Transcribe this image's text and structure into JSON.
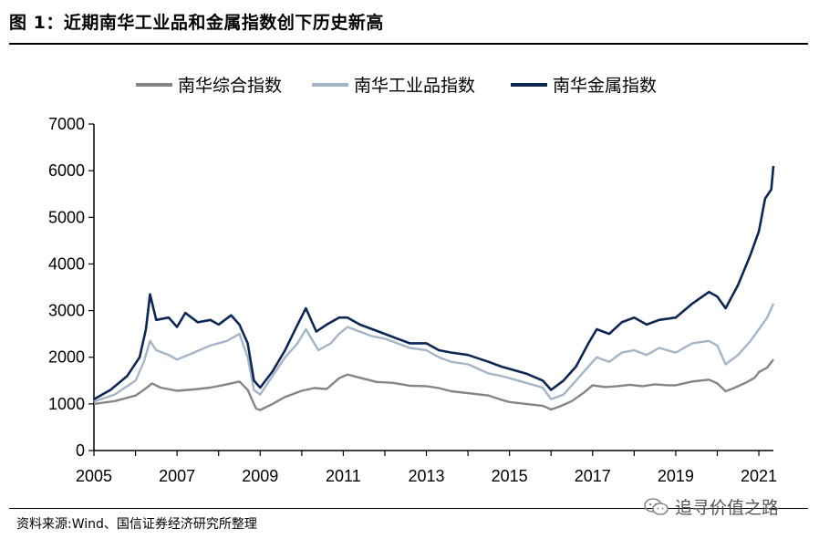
{
  "header": {
    "title": "图 1：近期南华工业品和金属指数创下历史新高"
  },
  "footer": {
    "source": "资料来源:Wind、国信证券经济研究所整理",
    "watermark": "追寻价值之路"
  },
  "colors": {
    "composite": "#858585",
    "industrial": "#a4b5c8",
    "metals": "#0c2655"
  },
  "icons": [
    "wechat-icon"
  ],
  "chart_data": {
    "type": "line",
    "title": "",
    "xlabel": "",
    "ylabel": "",
    "ylim": [
      0,
      7000
    ],
    "xlim": [
      2005,
      2021.35
    ],
    "yticks": [
      "0",
      "1000",
      "2000",
      "3000",
      "4000",
      "5000",
      "6000",
      "7000"
    ],
    "xticks": [
      "2005",
      "2007",
      "2009",
      "2011",
      "2013",
      "2015",
      "2017",
      "2019",
      "2021"
    ],
    "grid": false,
    "legend_position": "top",
    "series": [
      {
        "name": "南华综合指数",
        "points": [
          [
            2005.0,
            1000
          ],
          [
            2005.5,
            1060
          ],
          [
            2006.0,
            1180
          ],
          [
            2006.2,
            1300
          ],
          [
            2006.4,
            1440
          ],
          [
            2006.6,
            1350
          ],
          [
            2007.0,
            1280
          ],
          [
            2007.4,
            1310
          ],
          [
            2007.8,
            1350
          ],
          [
            2008.2,
            1420
          ],
          [
            2008.5,
            1480
          ],
          [
            2008.7,
            1300
          ],
          [
            2008.9,
            900
          ],
          [
            2009.0,
            870
          ],
          [
            2009.3,
            1000
          ],
          [
            2009.6,
            1150
          ],
          [
            2010.0,
            1280
          ],
          [
            2010.3,
            1340
          ],
          [
            2010.6,
            1320
          ],
          [
            2010.9,
            1550
          ],
          [
            2011.1,
            1630
          ],
          [
            2011.4,
            1560
          ],
          [
            2011.8,
            1470
          ],
          [
            2012.2,
            1450
          ],
          [
            2012.6,
            1390
          ],
          [
            2013.0,
            1380
          ],
          [
            2013.3,
            1340
          ],
          [
            2013.6,
            1270
          ],
          [
            2014.0,
            1230
          ],
          [
            2014.5,
            1180
          ],
          [
            2014.8,
            1090
          ],
          [
            2015.0,
            1040
          ],
          [
            2015.4,
            1000
          ],
          [
            2015.8,
            960
          ],
          [
            2016.0,
            880
          ],
          [
            2016.2,
            940
          ],
          [
            2016.5,
            1060
          ],
          [
            2016.8,
            1250
          ],
          [
            2017.0,
            1400
          ],
          [
            2017.3,
            1360
          ],
          [
            2017.6,
            1380
          ],
          [
            2017.9,
            1410
          ],
          [
            2018.2,
            1380
          ],
          [
            2018.5,
            1420
          ],
          [
            2018.8,
            1400
          ],
          [
            2019.0,
            1400
          ],
          [
            2019.4,
            1480
          ],
          [
            2019.8,
            1520
          ],
          [
            2020.0,
            1440
          ],
          [
            2020.2,
            1270
          ],
          [
            2020.4,
            1340
          ],
          [
            2020.7,
            1460
          ],
          [
            2020.9,
            1560
          ],
          [
            2021.0,
            1680
          ],
          [
            2021.2,
            1780
          ],
          [
            2021.35,
            1950
          ]
        ]
      },
      {
        "name": "南华工业品指数",
        "points": [
          [
            2005.0,
            1050
          ],
          [
            2005.5,
            1200
          ],
          [
            2006.0,
            1500
          ],
          [
            2006.2,
            1900
          ],
          [
            2006.35,
            2350
          ],
          [
            2006.5,
            2150
          ],
          [
            2006.8,
            2050
          ],
          [
            2007.0,
            1950
          ],
          [
            2007.4,
            2100
          ],
          [
            2007.8,
            2250
          ],
          [
            2008.2,
            2350
          ],
          [
            2008.5,
            2500
          ],
          [
            2008.7,
            2000
          ],
          [
            2008.85,
            1300
          ],
          [
            2009.0,
            1200
          ],
          [
            2009.3,
            1600
          ],
          [
            2009.6,
            2000
          ],
          [
            2009.9,
            2300
          ],
          [
            2010.1,
            2600
          ],
          [
            2010.4,
            2150
          ],
          [
            2010.7,
            2300
          ],
          [
            2010.9,
            2500
          ],
          [
            2011.1,
            2650
          ],
          [
            2011.4,
            2550
          ],
          [
            2011.7,
            2450
          ],
          [
            2012.0,
            2400
          ],
          [
            2012.3,
            2300
          ],
          [
            2012.6,
            2200
          ],
          [
            2013.0,
            2150
          ],
          [
            2013.3,
            2000
          ],
          [
            2013.6,
            1900
          ],
          [
            2014.0,
            1850
          ],
          [
            2014.5,
            1650
          ],
          [
            2014.8,
            1600
          ],
          [
            2015.0,
            1550
          ],
          [
            2015.4,
            1450
          ],
          [
            2015.8,
            1350
          ],
          [
            2016.0,
            1100
          ],
          [
            2016.3,
            1200
          ],
          [
            2016.6,
            1500
          ],
          [
            2016.9,
            1800
          ],
          [
            2017.1,
            2000
          ],
          [
            2017.4,
            1900
          ],
          [
            2017.7,
            2100
          ],
          [
            2018.0,
            2150
          ],
          [
            2018.3,
            2050
          ],
          [
            2018.6,
            2200
          ],
          [
            2019.0,
            2100
          ],
          [
            2019.4,
            2300
          ],
          [
            2019.8,
            2350
          ],
          [
            2020.0,
            2250
          ],
          [
            2020.2,
            1850
          ],
          [
            2020.5,
            2050
          ],
          [
            2020.8,
            2350
          ],
          [
            2021.0,
            2600
          ],
          [
            2021.2,
            2850
          ],
          [
            2021.35,
            3150
          ]
        ]
      },
      {
        "name": "南华金属指数",
        "points": [
          [
            2005.0,
            1100
          ],
          [
            2005.4,
            1300
          ],
          [
            2005.8,
            1600
          ],
          [
            2006.1,
            2000
          ],
          [
            2006.25,
            2600
          ],
          [
            2006.35,
            3350
          ],
          [
            2006.5,
            2800
          ],
          [
            2006.8,
            2850
          ],
          [
            2007.0,
            2650
          ],
          [
            2007.2,
            2950
          ],
          [
            2007.5,
            2750
          ],
          [
            2007.8,
            2800
          ],
          [
            2008.0,
            2700
          ],
          [
            2008.3,
            2900
          ],
          [
            2008.5,
            2700
          ],
          [
            2008.7,
            2300
          ],
          [
            2008.85,
            1500
          ],
          [
            2009.0,
            1350
          ],
          [
            2009.3,
            1700
          ],
          [
            2009.6,
            2150
          ],
          [
            2009.9,
            2700
          ],
          [
            2010.1,
            3050
          ],
          [
            2010.35,
            2550
          ],
          [
            2010.6,
            2700
          ],
          [
            2010.9,
            2850
          ],
          [
            2011.1,
            2850
          ],
          [
            2011.4,
            2700
          ],
          [
            2011.7,
            2600
          ],
          [
            2012.0,
            2500
          ],
          [
            2012.3,
            2400
          ],
          [
            2012.6,
            2300
          ],
          [
            2013.0,
            2300
          ],
          [
            2013.3,
            2150
          ],
          [
            2013.6,
            2100
          ],
          [
            2014.0,
            2050
          ],
          [
            2014.5,
            1900
          ],
          [
            2014.8,
            1800
          ],
          [
            2015.0,
            1750
          ],
          [
            2015.4,
            1650
          ],
          [
            2015.8,
            1500
          ],
          [
            2016.0,
            1300
          ],
          [
            2016.3,
            1500
          ],
          [
            2016.6,
            1800
          ],
          [
            2016.9,
            2300
          ],
          [
            2017.1,
            2600
          ],
          [
            2017.4,
            2500
          ],
          [
            2017.7,
            2750
          ],
          [
            2018.0,
            2850
          ],
          [
            2018.3,
            2700
          ],
          [
            2018.6,
            2800
          ],
          [
            2019.0,
            2850
          ],
          [
            2019.4,
            3150
          ],
          [
            2019.8,
            3400
          ],
          [
            2020.0,
            3300
          ],
          [
            2020.2,
            3050
          ],
          [
            2020.5,
            3550
          ],
          [
            2020.8,
            4200
          ],
          [
            2021.0,
            4700
          ],
          [
            2021.15,
            5400
          ],
          [
            2021.3,
            5600
          ],
          [
            2021.35,
            6100
          ]
        ]
      }
    ]
  }
}
